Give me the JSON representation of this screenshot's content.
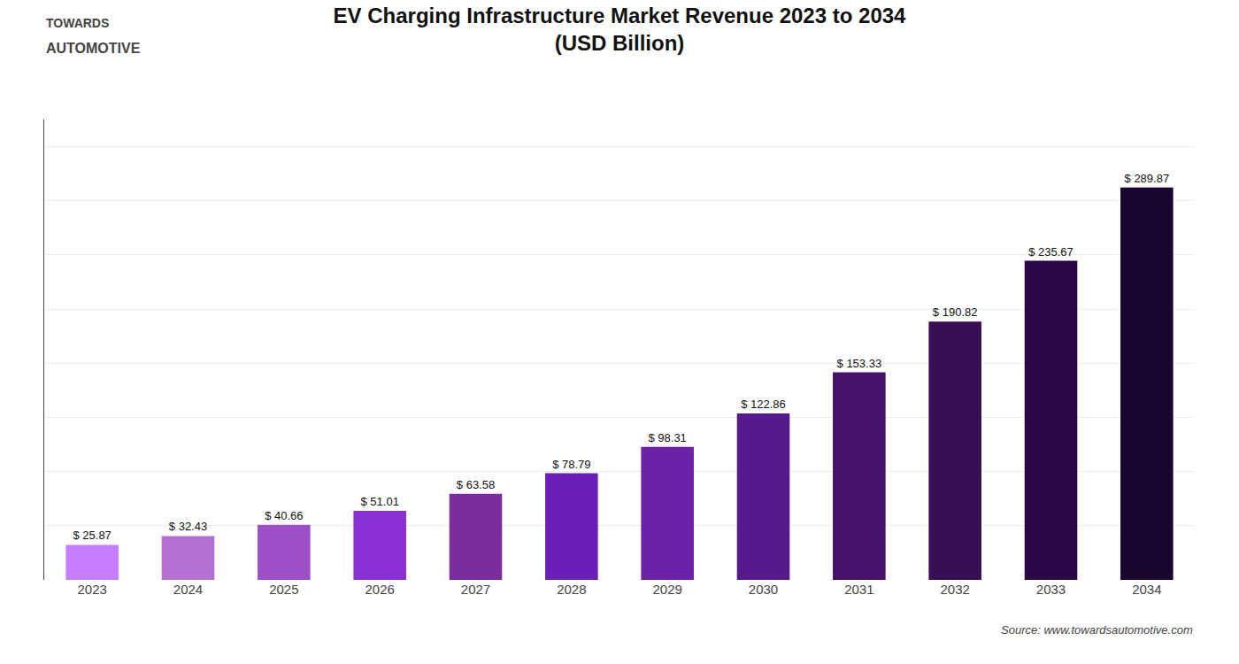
{
  "chart_data": {
    "type": "bar",
    "title": "EV Charging Infrastructure Market Revenue 2023 to 2034",
    "subtitle": "(USD Billion)",
    "annotations": [
      "TOWARDS",
      "AUTOMOTIVE",
      "Source: www.towardsautomotive.com"
    ],
    "categories": [
      "2023",
      "2024",
      "2025",
      "2026",
      "2027",
      "2028",
      "2029",
      "2030",
      "2031",
      "2032",
      "2033",
      "2034"
    ],
    "values": [
      25.87,
      32.43,
      40.66,
      51.01,
      63.58,
      78.79,
      98.31,
      122.86,
      153.33,
      190.82,
      235.67,
      289.87
    ],
    "value_labels": [
      "$ 25.87",
      "$ 32.43",
      "$ 40.66",
      "$ 51.01",
      "$ 63.58",
      "$ 78.79",
      "$ 98.31",
      "$ 122.86",
      "$ 153.33",
      "$ 190.82",
      "$ 235.67",
      "$ 289.87"
    ],
    "data_labels": true,
    "colors": [
      "#c77dff",
      "#b36fd4",
      "#9d4fc7",
      "#8b30d4",
      "#7b2d9e",
      "#6a1fb8",
      "#6b21a8",
      "#561a8a",
      "#47126b",
      "#380e55",
      "#2a0845",
      "#1a0530"
    ],
    "ylim": [
      0,
      340
    ],
    "yticks": [
      0,
      40,
      80,
      120,
      160,
      200,
      240,
      280,
      320
    ],
    "grid": true,
    "tick_labels": "x"
  }
}
